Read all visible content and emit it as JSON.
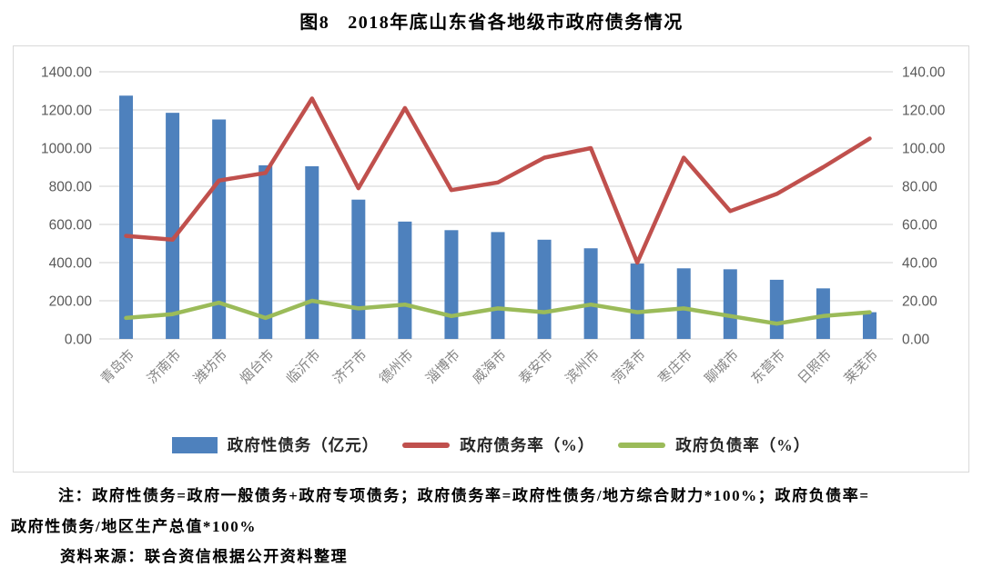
{
  "title": {
    "figure_label": "图8",
    "text": "2018年底山东省各地级市政府债务情况"
  },
  "chart_data": {
    "type": "combo-bar-line",
    "categories": [
      "青岛市",
      "济南市",
      "潍坊市",
      "烟台市",
      "临沂市",
      "济宁市",
      "德州市",
      "淄博市",
      "威海市",
      "泰安市",
      "滨州市",
      "菏泽市",
      "枣庄市",
      "聊城市",
      "东营市",
      "日照市",
      "莱芜市"
    ],
    "series": [
      {
        "name": "政府性债务（亿元）",
        "type": "bar",
        "axis": "left",
        "color": "#4E81BD",
        "values": [
          1275,
          1185,
          1150,
          910,
          905,
          730,
          615,
          570,
          560,
          520,
          475,
          395,
          370,
          365,
          310,
          265,
          140
        ]
      },
      {
        "name": "政府债务率（%）",
        "type": "line",
        "axis": "right",
        "color": "#C0504D",
        "values": [
          54,
          52,
          83,
          87,
          126,
          79,
          121,
          78,
          82,
          95,
          100,
          40,
          95,
          67,
          76,
          90,
          105
        ]
      },
      {
        "name": "政府负债率（%）",
        "type": "line",
        "axis": "right",
        "color": "#9BBB59",
        "values": [
          11,
          13,
          19,
          11,
          20,
          16,
          18,
          12,
          16,
          14,
          18,
          14,
          16,
          12,
          8,
          12,
          14
        ]
      }
    ],
    "left_axis": {
      "min": 0,
      "max": 1400,
      "step": 200,
      "tick_labels": [
        "0.00",
        "200.00",
        "400.00",
        "600.00",
        "800.00",
        "1000.00",
        "1200.00",
        "1400.00"
      ]
    },
    "right_axis": {
      "min": 0,
      "max": 140,
      "step": 20,
      "tick_labels": [
        "0.00",
        "20.00",
        "40.00",
        "60.00",
        "80.00",
        "100.00",
        "120.00",
        "140.00"
      ]
    },
    "grid": true,
    "legend_position": "bottom"
  },
  "notes": {
    "line1": "注：政府性债务=政府一般债务+政府专项债务；政府债务率=政府性债务/地方综合财力*100%；政府负债率=",
    "line2": "政府性债务/地区生产总值*100%",
    "source": "资料来源：联合资信根据公开资料整理"
  },
  "colors": {
    "bar_blue": "#4E81BD",
    "line_red": "#C0504D",
    "line_green": "#9BBB59",
    "gridline": "#D9D9D9",
    "panel_border": "#D9D9D9",
    "tick_text": "#595959",
    "category_text": "#848484"
  }
}
